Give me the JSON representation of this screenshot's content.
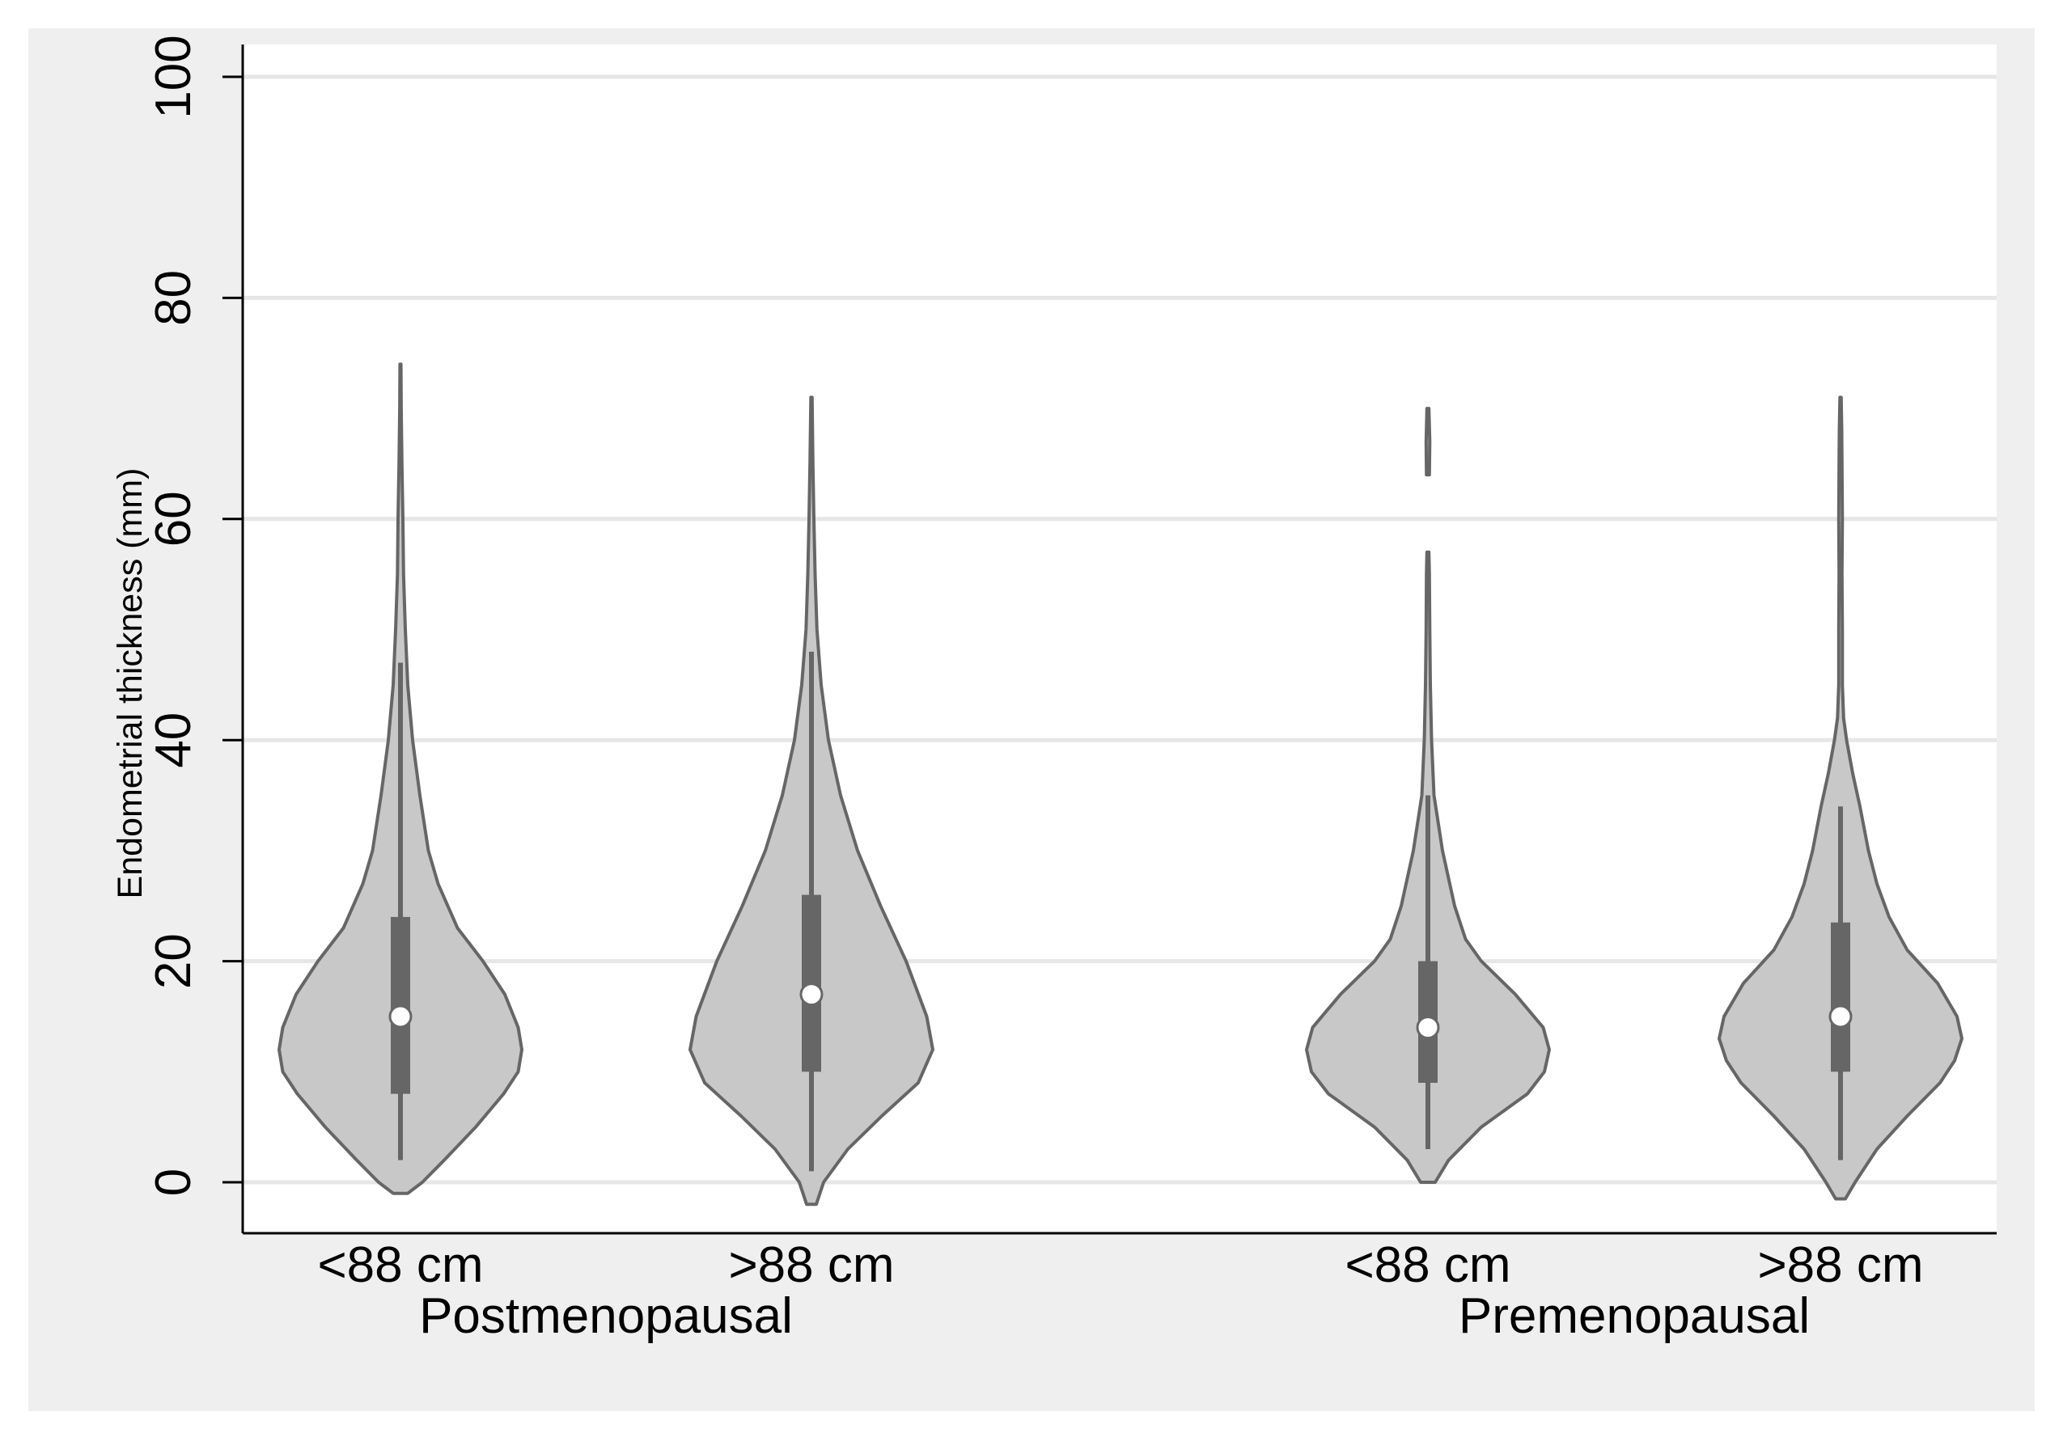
{
  "chart_data": {
    "type": "violin",
    "title": "",
    "xlabel": "",
    "ylabel": "Endometrial thickness (mm)",
    "ylim": [
      0,
      100
    ],
    "yticks": [
      0,
      20,
      40,
      60,
      80,
      100
    ],
    "grid": true,
    "groups": [
      {
        "label": "Postmenopausal",
        "categories": [
          "<88 cm",
          ">88 cm"
        ]
      },
      {
        "label": "Premenopausal",
        "categories": [
          "<88 cm",
          ">88 cm"
        ]
      }
    ],
    "series": [
      {
        "group": "Postmenopausal",
        "category": "<88 cm",
        "median": 15,
        "q1": 8,
        "q3": 24,
        "whisker_low": 2,
        "whisker_high": 47,
        "max": 74,
        "min": -1,
        "density": [
          [
            -1,
            0.06
          ],
          [
            0,
            0.18
          ],
          [
            2,
            0.36
          ],
          [
            5,
            0.62
          ],
          [
            8,
            0.85
          ],
          [
            10,
            0.97
          ],
          [
            12,
            1.0
          ],
          [
            14,
            0.97
          ],
          [
            17,
            0.86
          ],
          [
            20,
            0.68
          ],
          [
            23,
            0.47
          ],
          [
            27,
            0.31
          ],
          [
            30,
            0.23
          ],
          [
            35,
            0.16
          ],
          [
            40,
            0.1
          ],
          [
            45,
            0.06
          ],
          [
            50,
            0.04
          ],
          [
            55,
            0.025
          ],
          [
            60,
            0.02
          ],
          [
            65,
            0.012
          ],
          [
            70,
            0.006
          ],
          [
            74,
            0.004
          ]
        ]
      },
      {
        "group": "Postmenopausal",
        "category": ">88 cm",
        "median": 17,
        "q1": 10,
        "q3": 26,
        "whisker_low": 1,
        "whisker_high": 48,
        "max": 71,
        "min": -2,
        "density": [
          [
            -2,
            0.04
          ],
          [
            0,
            0.1
          ],
          [
            3,
            0.3
          ],
          [
            6,
            0.58
          ],
          [
            9,
            0.88
          ],
          [
            12,
            1.0
          ],
          [
            15,
            0.95
          ],
          [
            20,
            0.78
          ],
          [
            25,
            0.57
          ],
          [
            30,
            0.38
          ],
          [
            35,
            0.24
          ],
          [
            40,
            0.14
          ],
          [
            45,
            0.08
          ],
          [
            50,
            0.045
          ],
          [
            55,
            0.03
          ],
          [
            60,
            0.02
          ],
          [
            65,
            0.012
          ],
          [
            71,
            0.005
          ]
        ]
      },
      {
        "group": "Premenopausal",
        "category": "<88 cm",
        "median": 14,
        "q1": 9,
        "q3": 20,
        "whisker_low": 3,
        "whisker_high": 35,
        "max": 70,
        "min": 0,
        "density": [
          [
            0,
            0.06
          ],
          [
            2,
            0.17
          ],
          [
            5,
            0.44
          ],
          [
            8,
            0.82
          ],
          [
            10,
            0.96
          ],
          [
            12,
            1.0
          ],
          [
            14,
            0.95
          ],
          [
            17,
            0.72
          ],
          [
            20,
            0.44
          ],
          [
            22,
            0.31
          ],
          [
            25,
            0.22
          ],
          [
            30,
            0.12
          ],
          [
            35,
            0.05
          ],
          [
            40,
            0.03
          ],
          [
            45,
            0.02
          ],
          [
            50,
            0.015
          ],
          [
            55,
            0.012
          ],
          [
            57,
            0.008
          ],
          [
            58,
            0.0
          ],
          [
            63,
            0.0
          ],
          [
            64,
            0.012
          ],
          [
            67,
            0.015
          ],
          [
            70,
            0.008
          ]
        ]
      },
      {
        "group": "Premenopausal",
        "category": ">88 cm",
        "median": 15,
        "q1": 10,
        "q3": 23.5,
        "whisker_low": 2,
        "whisker_high": 34,
        "max": 71,
        "min": -1.5,
        "density": [
          [
            -1.5,
            0.04
          ],
          [
            0,
            0.12
          ],
          [
            3,
            0.3
          ],
          [
            6,
            0.55
          ],
          [
            9,
            0.82
          ],
          [
            11,
            0.94
          ],
          [
            13,
            1.0
          ],
          [
            15,
            0.96
          ],
          [
            18,
            0.8
          ],
          [
            21,
            0.55
          ],
          [
            24,
            0.4
          ],
          [
            27,
            0.3
          ],
          [
            30,
            0.23
          ],
          [
            34,
            0.16
          ],
          [
            37,
            0.1
          ],
          [
            40,
            0.05
          ],
          [
            42,
            0.025
          ],
          [
            45,
            0.015
          ],
          [
            50,
            0.015
          ],
          [
            55,
            0.012
          ],
          [
            60,
            0.015
          ],
          [
            65,
            0.012
          ],
          [
            68,
            0.01
          ],
          [
            71,
            0.005
          ]
        ]
      }
    ]
  }
}
